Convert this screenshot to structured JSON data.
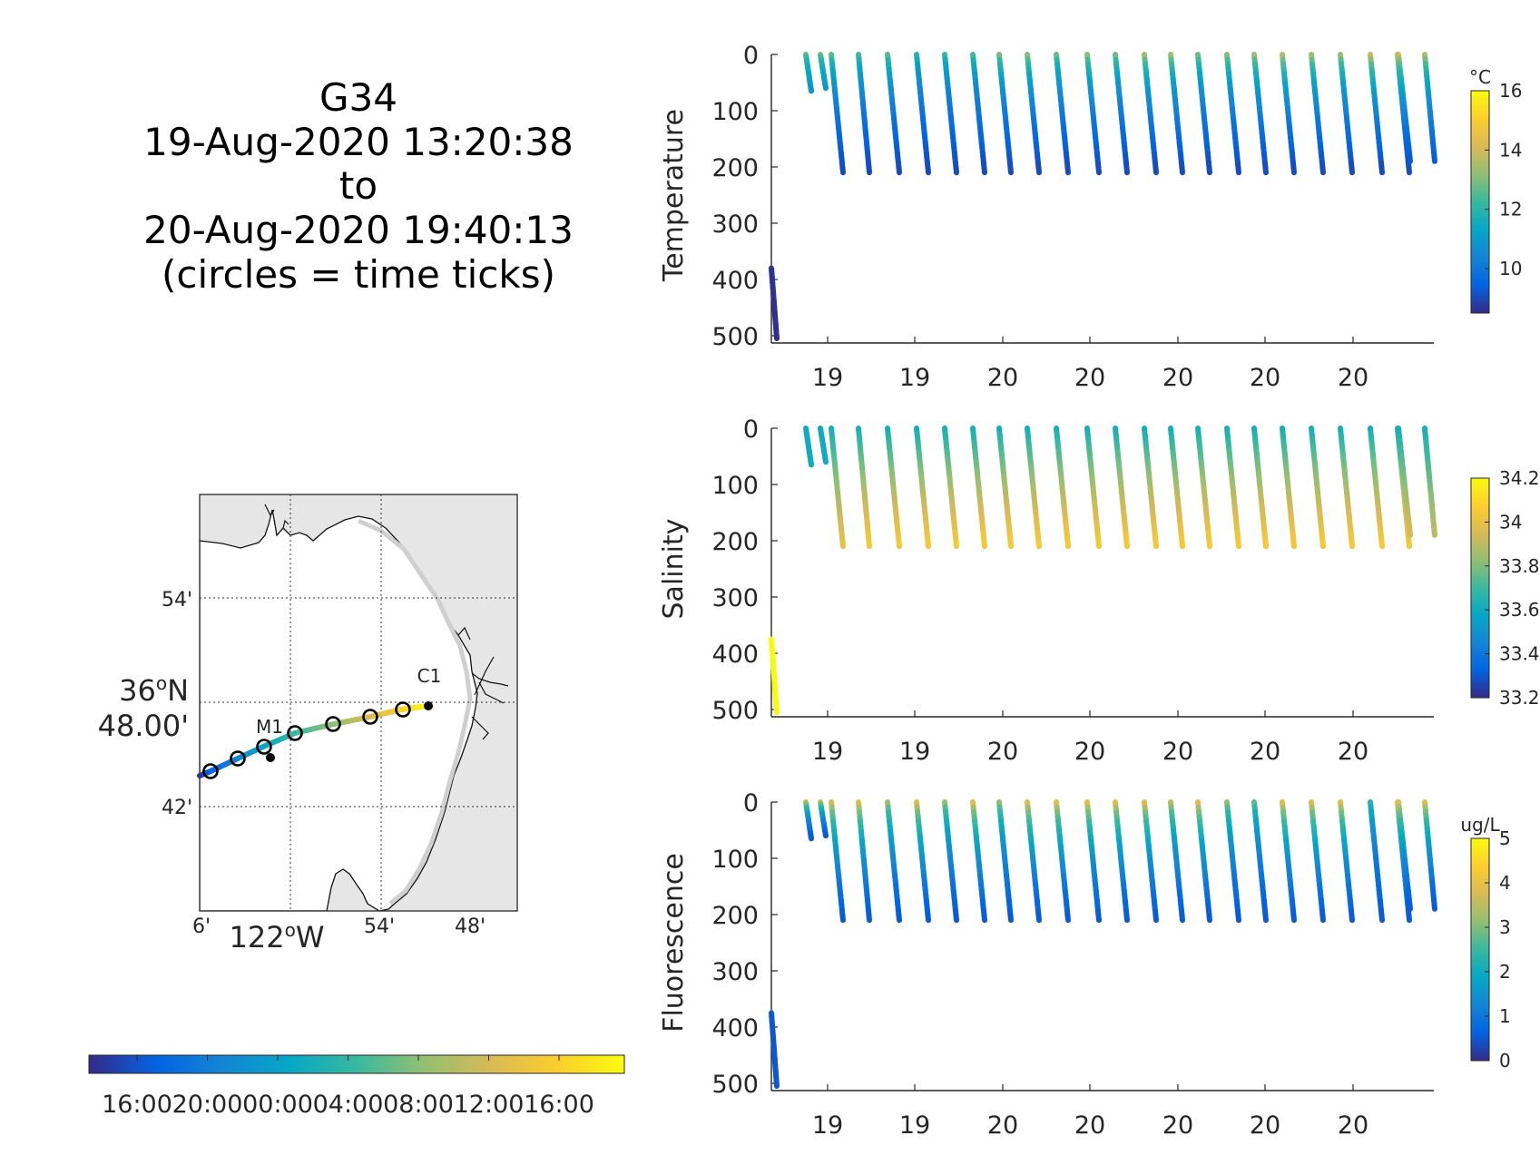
{
  "title": {
    "line1": "G34",
    "line2": "19-Aug-2020 13:20:38",
    "line3": "to",
    "line4": "20-Aug-2020 19:40:13",
    "line5": "(circles = time ticks)"
  },
  "map": {
    "lat_tick_54": "54'",
    "lat_main_deg": "36",
    "lat_main_sup": "o",
    "lat_main_hemi": "N",
    "lat_main_min": "48.00'",
    "lat_tick_42": "42'",
    "lon_tick_6": "6'",
    "lon_main_deg": "122",
    "lon_main_sup": "o",
    "lon_main_hemi": "W",
    "lon_tick_54": "54'",
    "lon_tick_48": "48'",
    "station_c1": "C1",
    "station_m1": "M1",
    "land_color": "#e6e6e6",
    "track_colormap": "parula",
    "time_colorbar_ticks": [
      "16:00",
      "20:00",
      "00:00",
      "04:00",
      "08:00",
      "12:00",
      "16:00"
    ]
  },
  "chart_data": [
    {
      "type": "scatter",
      "name_key": "temperature",
      "ylabel": "Temperature",
      "ylim": [
        0,
        500
      ],
      "yreversed": true,
      "yticks": [
        "0",
        "100",
        "200",
        "300",
        "400",
        "500"
      ],
      "xticks": [
        "19",
        "19",
        "20",
        "20",
        "20",
        "20",
        "20"
      ],
      "colorbar": {
        "unit": "°C",
        "ticks": [
          "16",
          "14",
          "12",
          "10"
        ],
        "range": [
          8.5,
          16
        ],
        "colormap": "parula"
      },
      "profiles": [
        {
          "depth": [
            380,
            505
          ],
          "value": [
            8.7,
            8.6
          ]
        },
        {
          "depth": [
            0,
            65
          ],
          "value": [
            13.5,
            10.8
          ]
        },
        {
          "depth": [
            0,
            60
          ],
          "value": [
            13.8,
            10.8
          ]
        },
        {
          "depth": [
            0,
            210
          ],
          "value": [
            13.8,
            9.0
          ]
        },
        {
          "depth": [
            0,
            210
          ],
          "value": [
            13.5,
            9.0
          ]
        },
        {
          "depth": [
            0,
            210
          ],
          "value": [
            13.8,
            9.0
          ]
        },
        {
          "depth": [
            0,
            210
          ],
          "value": [
            13.0,
            9.0
          ]
        },
        {
          "depth": [
            0,
            210
          ],
          "value": [
            13.2,
            9.0
          ]
        },
        {
          "depth": [
            0,
            210
          ],
          "value": [
            13.5,
            9.0
          ]
        },
        {
          "depth": [
            0,
            210
          ],
          "value": [
            14.2,
            9.0
          ]
        },
        {
          "depth": [
            0,
            210
          ],
          "value": [
            14.5,
            9.0
          ]
        },
        {
          "depth": [
            0,
            210
          ],
          "value": [
            14.0,
            9.0
          ]
        },
        {
          "depth": [
            0,
            210
          ],
          "value": [
            14.5,
            9.0
          ]
        },
        {
          "depth": [
            0,
            210
          ],
          "value": [
            14.2,
            9.0
          ]
        },
        {
          "depth": [
            0,
            210
          ],
          "value": [
            14.8,
            9.0
          ]
        },
        {
          "depth": [
            0,
            210
          ],
          "value": [
            14.8,
            9.0
          ]
        },
        {
          "depth": [
            0,
            210
          ],
          "value": [
            14.2,
            9.0
          ]
        },
        {
          "depth": [
            0,
            210
          ],
          "value": [
            14.5,
            9.0
          ]
        },
        {
          "depth": [
            0,
            210
          ],
          "value": [
            14.8,
            9.0
          ]
        },
        {
          "depth": [
            0,
            210
          ],
          "value": [
            15.2,
            9.0
          ]
        },
        {
          "depth": [
            0,
            210
          ],
          "value": [
            15.0,
            9.0
          ]
        },
        {
          "depth": [
            0,
            210
          ],
          "value": [
            14.8,
            9.0
          ]
        },
        {
          "depth": [
            0,
            210
          ],
          "value": [
            15.5,
            9.0
          ]
        },
        {
          "depth": [
            0,
            210
          ],
          "value": [
            15.2,
            9.0
          ]
        },
        {
          "depth": [
            0,
            190
          ],
          "value": [
            15.5,
            9.2
          ]
        },
        {
          "depth": [
            0,
            190
          ],
          "value": [
            15.0,
            9.3
          ]
        }
      ]
    },
    {
      "type": "scatter",
      "name_key": "salinity",
      "ylabel": "Salinity",
      "ylim": [
        0,
        500
      ],
      "yreversed": true,
      "yticks": [
        "0",
        "100",
        "200",
        "300",
        "400",
        "500"
      ],
      "xticks": [
        "19",
        "19",
        "20",
        "20",
        "20",
        "20",
        "20"
      ],
      "colorbar": {
        "unit": "",
        "ticks": [
          "34.2",
          "34",
          "33.8",
          "33.6",
          "33.4",
          "33.2"
        ],
        "range": [
          33.2,
          34.2
        ],
        "colormap": "parula"
      },
      "profiles": [
        {
          "depth": [
            375,
            505
          ],
          "value": [
            34.2,
            34.2
          ]
        },
        {
          "depth": [
            0,
            65
          ],
          "value": [
            33.6,
            33.6
          ]
        },
        {
          "depth": [
            0,
            60
          ],
          "value": [
            33.6,
            33.6
          ]
        },
        {
          "depth": [
            0,
            210
          ],
          "value": [
            33.6,
            34.0
          ]
        },
        {
          "depth": [
            0,
            210
          ],
          "value": [
            33.6,
            34.05
          ]
        },
        {
          "depth": [
            0,
            210
          ],
          "value": [
            33.6,
            34.05
          ]
        },
        {
          "depth": [
            0,
            210
          ],
          "value": [
            33.6,
            34.05
          ]
        },
        {
          "depth": [
            0,
            210
          ],
          "value": [
            33.6,
            34.05
          ]
        },
        {
          "depth": [
            0,
            210
          ],
          "value": [
            33.6,
            34.05
          ]
        },
        {
          "depth": [
            0,
            210
          ],
          "value": [
            33.6,
            34.05
          ]
        },
        {
          "depth": [
            0,
            210
          ],
          "value": [
            33.6,
            34.05
          ]
        },
        {
          "depth": [
            0,
            210
          ],
          "value": [
            33.6,
            34.05
          ]
        },
        {
          "depth": [
            0,
            210
          ],
          "value": [
            33.6,
            34.05
          ]
        },
        {
          "depth": [
            0,
            210
          ],
          "value": [
            33.6,
            34.05
          ]
        },
        {
          "depth": [
            0,
            210
          ],
          "value": [
            33.6,
            34.05
          ]
        },
        {
          "depth": [
            0,
            210
          ],
          "value": [
            33.6,
            34.05
          ]
        },
        {
          "depth": [
            0,
            210
          ],
          "value": [
            33.6,
            34.05
          ]
        },
        {
          "depth": [
            0,
            210
          ],
          "value": [
            33.6,
            34.05
          ]
        },
        {
          "depth": [
            0,
            210
          ],
          "value": [
            33.6,
            34.05
          ]
        },
        {
          "depth": [
            0,
            210
          ],
          "value": [
            33.6,
            34.05
          ]
        },
        {
          "depth": [
            0,
            210
          ],
          "value": [
            33.6,
            34.05
          ]
        },
        {
          "depth": [
            0,
            210
          ],
          "value": [
            33.6,
            34.05
          ]
        },
        {
          "depth": [
            0,
            210
          ],
          "value": [
            33.6,
            34.05
          ]
        },
        {
          "depth": [
            0,
            210
          ],
          "value": [
            33.6,
            34.05
          ]
        },
        {
          "depth": [
            0,
            190
          ],
          "value": [
            33.6,
            33.95
          ]
        },
        {
          "depth": [
            0,
            190
          ],
          "value": [
            33.6,
            33.9
          ]
        }
      ]
    },
    {
      "type": "scatter",
      "name_key": "fluorescence",
      "ylabel": "Fluorescence",
      "ylim": [
        0,
        500
      ],
      "yreversed": true,
      "yticks": [
        "0",
        "100",
        "200",
        "300",
        "400",
        "500"
      ],
      "xticks": [
        "19",
        "19",
        "20",
        "20",
        "20",
        "20",
        "20"
      ],
      "colorbar": {
        "unit": "ug/L",
        "ticks": [
          "5",
          "4",
          "3",
          "2",
          "1",
          "0"
        ],
        "range": [
          0,
          5
        ],
        "colormap": "parula"
      },
      "profiles": [
        {
          "depth": [
            375,
            505
          ],
          "value": [
            0.5,
            0.5
          ]
        },
        {
          "depth": [
            0,
            65
          ],
          "value": [
            4.8,
            0.5
          ]
        },
        {
          "depth": [
            0,
            60
          ],
          "value": [
            4.8,
            0.5
          ]
        },
        {
          "depth": [
            0,
            210
          ],
          "value": [
            4.8,
            0.5
          ]
        },
        {
          "depth": [
            0,
            210
          ],
          "value": [
            5.0,
            0.5
          ]
        },
        {
          "depth": [
            0,
            210
          ],
          "value": [
            4.2,
            0.5
          ]
        },
        {
          "depth": [
            0,
            210
          ],
          "value": [
            5.0,
            0.5
          ]
        },
        {
          "depth": [
            0,
            210
          ],
          "value": [
            4.0,
            0.5
          ]
        },
        {
          "depth": [
            0,
            210
          ],
          "value": [
            5.0,
            0.5
          ]
        },
        {
          "depth": [
            0,
            210
          ],
          "value": [
            4.0,
            0.5
          ]
        },
        {
          "depth": [
            0,
            210
          ],
          "value": [
            5.0,
            0.5
          ]
        },
        {
          "depth": [
            0,
            210
          ],
          "value": [
            5.0,
            0.5
          ]
        },
        {
          "depth": [
            0,
            210
          ],
          "value": [
            5.0,
            0.5
          ]
        },
        {
          "depth": [
            0,
            210
          ],
          "value": [
            5.0,
            0.5
          ]
        },
        {
          "depth": [
            0,
            210
          ],
          "value": [
            5.0,
            0.5
          ]
        },
        {
          "depth": [
            0,
            210
          ],
          "value": [
            4.5,
            0.5
          ]
        },
        {
          "depth": [
            0,
            210
          ],
          "value": [
            5.0,
            0.5
          ]
        },
        {
          "depth": [
            0,
            210
          ],
          "value": [
            4.0,
            0.5
          ]
        },
        {
          "depth": [
            0,
            210
          ],
          "value": [
            3.5,
            0.5
          ]
        },
        {
          "depth": [
            0,
            210
          ],
          "value": [
            5.0,
            0.5
          ]
        },
        {
          "depth": [
            0,
            210
          ],
          "value": [
            5.0,
            0.5
          ]
        },
        {
          "depth": [
            0,
            210
          ],
          "value": [
            5.0,
            0.5
          ]
        },
        {
          "depth": [
            0,
            210
          ],
          "value": [
            3.0,
            0.5
          ]
        },
        {
          "depth": [
            0,
            210
          ],
          "value": [
            5.0,
            0.5
          ]
        },
        {
          "depth": [
            0,
            190
          ],
          "value": [
            5.0,
            0.5
          ]
        },
        {
          "depth": [
            0,
            190
          ],
          "value": [
            5.0,
            0.5
          ]
        }
      ]
    }
  ]
}
